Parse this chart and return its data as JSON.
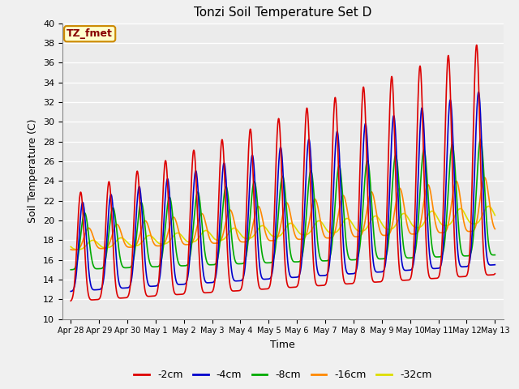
{
  "title": "Tonzi Soil Temperature Set D",
  "xlabel": "Time",
  "ylabel": "Soil Temperature (C)",
  "ylim": [
    10,
    40
  ],
  "annotation_text": "TZ_fmet",
  "annotation_bg": "#FFFFCC",
  "annotation_border": "#CC8800",
  "fig_bg": "#F0F0F0",
  "plot_bg": "#EBEBEB",
  "legend_entries": [
    "-2cm",
    "-4cm",
    "-8cm",
    "-16cm",
    "-32cm"
  ],
  "legend_colors": [
    "#DD0000",
    "#0000CC",
    "#00AA00",
    "#FF8800",
    "#DDDD00"
  ],
  "line_width": 1.2,
  "n_days": 15,
  "points_per_day": 96,
  "depths_min_start": [
    11.8,
    12.8,
    15.0,
    17.0,
    17.0
  ],
  "depths_max_start": [
    22.5,
    21.5,
    20.5,
    19.0,
    17.8
  ],
  "depths_min_end": [
    14.5,
    15.5,
    16.5,
    19.0,
    19.8
  ],
  "depths_max_end": [
    38.5,
    33.5,
    28.5,
    24.5,
    21.5
  ],
  "phase_shift": [
    0.0,
    0.07,
    0.14,
    0.28,
    0.42
  ],
  "peak_sharpness": [
    3.5,
    3.0,
    2.5,
    2.0,
    1.5
  ],
  "yticks": [
    10,
    12,
    14,
    16,
    18,
    20,
    22,
    24,
    26,
    28,
    30,
    32,
    34,
    36,
    38,
    40
  ],
  "xtick_labels": [
    "Apr 28",
    "Apr 29",
    "Apr 30",
    "May 1",
    "May 2",
    "May 3",
    "May 4",
    "May 5",
    "May 6",
    "May 7",
    "May 8",
    "May 9",
    "May 10",
    "May 11",
    "May 12",
    "May 13"
  ],
  "xtick_positions": [
    0,
    1,
    2,
    3,
    4,
    5,
    6,
    7,
    8,
    9,
    10,
    11,
    12,
    13,
    14,
    15
  ]
}
